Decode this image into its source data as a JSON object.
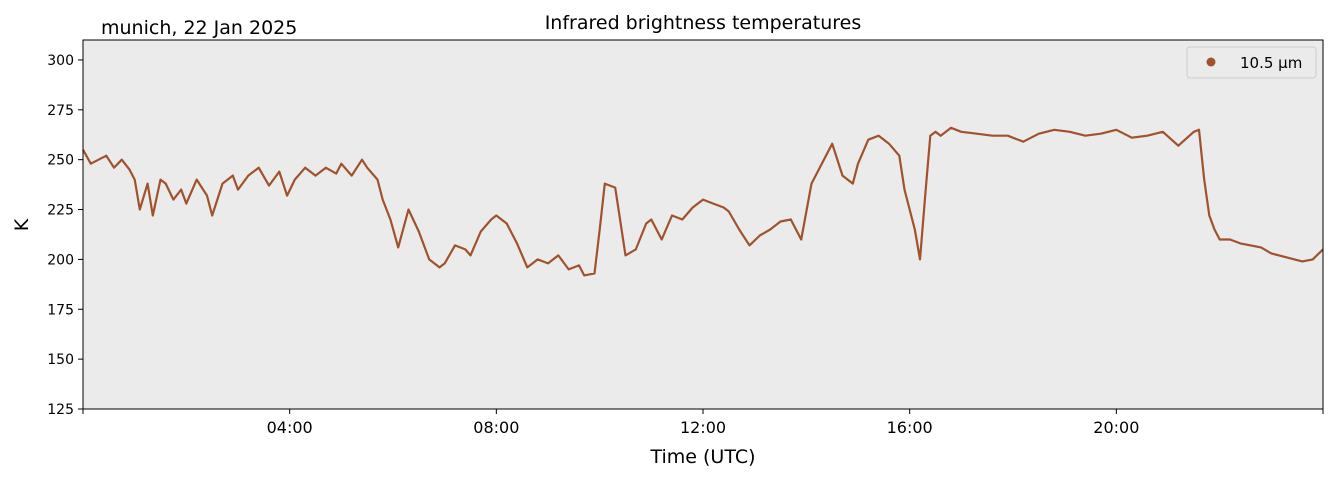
{
  "location_label": "munich, 22 Jan 2025",
  "chart_data": {
    "type": "line",
    "title": "Infrared brightness temperatures",
    "xlabel": "Time (UTC)",
    "ylabel": "K",
    "xlim_hours": [
      0,
      24
    ],
    "ylim": [
      125,
      310
    ],
    "x_ticks": [
      {
        "hour": 4,
        "label": "04:00"
      },
      {
        "hour": 8,
        "label": "08:00"
      },
      {
        "hour": 12,
        "label": "12:00"
      },
      {
        "hour": 16,
        "label": "16:00"
      },
      {
        "hour": 20,
        "label": "20:00"
      }
    ],
    "y_ticks": [
      125,
      150,
      175,
      200,
      225,
      250,
      275,
      300
    ],
    "grid": false,
    "legend_position": "upper-right",
    "background_color": "#ebebeb",
    "series": [
      {
        "name": "10.5 µm",
        "color": "#a0522d",
        "x_hours": [
          0.0,
          0.15,
          0.3,
          0.45,
          0.6,
          0.75,
          0.9,
          1.0,
          1.1,
          1.25,
          1.35,
          1.5,
          1.6,
          1.75,
          1.9,
          2.0,
          2.2,
          2.4,
          2.5,
          2.7,
          2.9,
          3.0,
          3.2,
          3.4,
          3.6,
          3.8,
          3.95,
          4.1,
          4.3,
          4.5,
          4.7,
          4.9,
          5.0,
          5.2,
          5.4,
          5.5,
          5.7,
          5.8,
          5.95,
          6.1,
          6.3,
          6.5,
          6.7,
          6.9,
          7.0,
          7.2,
          7.4,
          7.5,
          7.7,
          7.9,
          8.0,
          8.2,
          8.4,
          8.6,
          8.8,
          9.0,
          9.2,
          9.4,
          9.6,
          9.7,
          9.9,
          10.0,
          10.1,
          10.3,
          10.5,
          10.7,
          10.9,
          11.0,
          11.2,
          11.4,
          11.6,
          11.8,
          12.0,
          12.2,
          12.4,
          12.5,
          12.7,
          12.9,
          13.1,
          13.3,
          13.5,
          13.7,
          13.9,
          14.1,
          14.3,
          14.5,
          14.7,
          14.9,
          15.0,
          15.2,
          15.4,
          15.6,
          15.8,
          15.9,
          16.1,
          16.2,
          16.3,
          16.4,
          16.5,
          16.6,
          16.8,
          17.0,
          17.3,
          17.6,
          17.9,
          18.2,
          18.5,
          18.8,
          19.1,
          19.4,
          19.7,
          20.0,
          20.3,
          20.6,
          20.9,
          21.2,
          21.5,
          21.6,
          21.7,
          21.8,
          21.9,
          22.0,
          22.2,
          22.4,
          22.6,
          22.8,
          23.0,
          23.3,
          23.6,
          23.8,
          24.0
        ],
        "values": [
          255,
          248,
          250,
          252,
          246,
          250,
          245,
          240,
          225,
          238,
          222,
          240,
          238,
          230,
          235,
          228,
          240,
          232,
          222,
          238,
          242,
          235,
          242,
          246,
          237,
          244,
          232,
          240,
          246,
          242,
          246,
          243,
          248,
          242,
          250,
          246,
          240,
          230,
          220,
          206,
          225,
          214,
          200,
          196,
          198,
          207,
          205,
          202,
          214,
          220,
          222,
          218,
          208,
          196,
          200,
          198,
          202,
          195,
          197,
          192,
          193,
          215,
          238,
          236,
          202,
          205,
          218,
          220,
          210,
          222,
          220,
          226,
          230,
          228,
          226,
          224,
          215,
          207,
          212,
          215,
          219,
          220,
          210,
          238,
          248,
          258,
          242,
          238,
          248,
          260,
          262,
          258,
          252,
          235,
          215,
          200,
          232,
          262,
          264,
          262,
          266,
          264,
          263,
          262,
          262,
          259,
          263,
          265,
          264,
          262,
          263,
          265,
          261,
          262,
          264,
          257,
          264,
          265,
          240,
          222,
          215,
          210,
          210,
          208,
          207,
          206,
          203,
          201,
          199,
          200,
          205
        ]
      }
    ]
  }
}
